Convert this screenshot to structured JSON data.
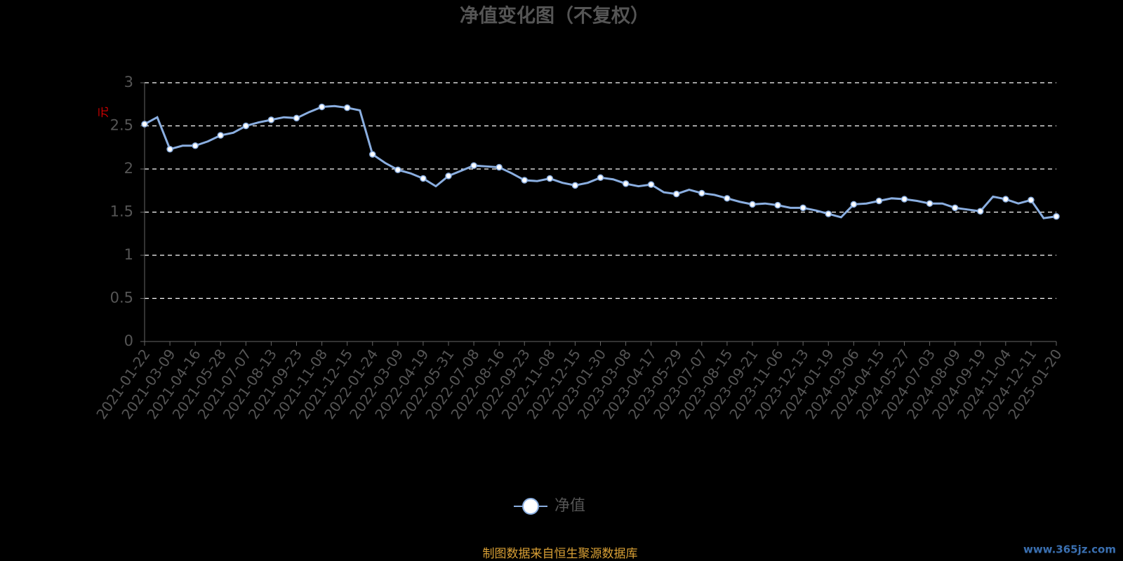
{
  "chart_data": {
    "type": "line",
    "title": "净值变化图（不复权）",
    "y_label": "元",
    "categories": [
      "2021-01-22",
      null,
      "2021-03-09",
      null,
      "2021-04-16",
      null,
      "2021-05-28",
      null,
      "2021-07-07",
      null,
      "2021-08-13",
      null,
      "2021-09-23",
      null,
      "2021-11-08",
      null,
      "2021-12-15",
      null,
      "2022-01-24",
      null,
      "2022-03-09",
      null,
      "2022-04-19",
      null,
      "2022-05-31",
      null,
      "2022-07-08",
      null,
      "2022-08-16",
      null,
      "2022-09-23",
      null,
      "2022-11-08",
      null,
      "2022-12-15",
      null,
      "2023-01-30",
      null,
      "2023-03-08",
      null,
      "2023-04-17",
      null,
      "2023-05-29",
      null,
      "2023-07-07",
      null,
      "2023-08-15",
      null,
      "2023-09-21",
      null,
      "2023-11-06",
      null,
      "2023-12-13",
      null,
      "2024-01-19",
      null,
      "2024-03-06",
      null,
      "2024-04-15",
      null,
      "2024-05-27",
      null,
      "2024-07-03",
      null,
      "2024-08-09",
      null,
      "2024-09-19",
      null,
      "2024-11-04",
      null,
      "2024-12-11",
      null,
      "2025-01-20"
    ],
    "series": [
      {
        "name": "净值",
        "color": "#8aaee0",
        "values": [
          2.52,
          2.6,
          2.23,
          2.27,
          2.27,
          2.32,
          2.39,
          2.42,
          2.5,
          2.54,
          2.57,
          2.6,
          2.59,
          2.66,
          2.72,
          2.73,
          2.71,
          2.68,
          2.17,
          2.07,
          1.99,
          1.95,
          1.89,
          1.8,
          1.92,
          1.98,
          2.04,
          2.03,
          2.02,
          1.95,
          1.87,
          1.86,
          1.89,
          1.84,
          1.81,
          1.84,
          1.9,
          1.88,
          1.83,
          1.8,
          1.82,
          1.73,
          1.71,
          1.76,
          1.72,
          1.7,
          1.66,
          1.62,
          1.59,
          1.6,
          1.58,
          1.55,
          1.55,
          1.52,
          1.48,
          1.44,
          1.59,
          1.6,
          1.63,
          1.66,
          1.65,
          1.63,
          1.6,
          1.6,
          1.55,
          1.53,
          1.51,
          1.68,
          1.65,
          1.6,
          1.64,
          1.43,
          1.45
        ]
      }
    ],
    "ylim": [
      0,
      3
    ],
    "yticks": [
      0,
      0.5,
      1,
      1.5,
      2,
      2.5,
      3
    ],
    "grid": true,
    "source": "制图数据来自恒生聚源数据库",
    "watermark": "www.365jz.com"
  }
}
